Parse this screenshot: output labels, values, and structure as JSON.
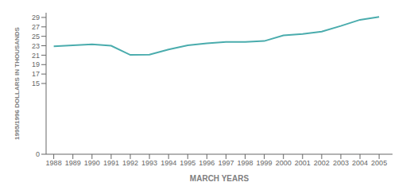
{
  "chart_data": {
    "type": "line",
    "xlabel": "MARCH YEARS",
    "ylabel": "1995/1996 DOLLARS IN THOUSANDS",
    "x": [
      1988,
      1989,
      1990,
      1991,
      1992,
      1993,
      1994,
      1995,
      1996,
      1997,
      1998,
      1999,
      2000,
      2001,
      2002,
      2003,
      2004,
      2005
    ],
    "values": [
      22.9,
      23.1,
      23.3,
      23.0,
      21.05,
      21.1,
      22.2,
      23.1,
      23.5,
      23.8,
      23.8,
      24.0,
      25.2,
      25.5,
      26.0,
      27.2,
      28.5,
      29.1
    ],
    "color": "#4aacad",
    "xlim": [
      1987.6,
      2005.7
    ],
    "xticks": [
      1988,
      1989,
      1990,
      1991,
      1992,
      1993,
      1994,
      1995,
      1996,
      1997,
      1998,
      1999,
      2000,
      2001,
      2002,
      2003,
      2004,
      2005
    ],
    "ylim": [
      0,
      30
    ],
    "yticks": [
      0,
      15,
      17,
      19,
      21,
      23,
      25,
      27,
      29
    ],
    "grid": false
  }
}
